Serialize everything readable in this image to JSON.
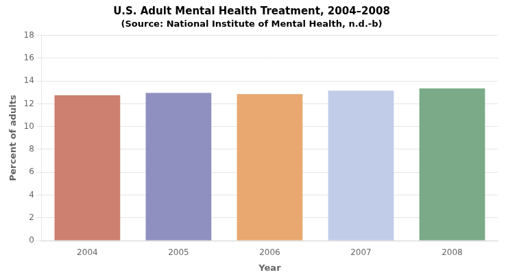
{
  "chart_data": {
    "type": "bar",
    "title": "U.S. Adult Mental Health Treatment, 2004–2008",
    "subtitle": "(Source: National Institute of Mental Health, n.d.-b)",
    "xlabel": "Year",
    "ylabel": "Percent of adults",
    "categories": [
      "2004",
      "2005",
      "2006",
      "2007",
      "2008"
    ],
    "values": [
      12.75,
      12.95,
      12.85,
      13.15,
      13.35
    ],
    "colors": [
      "#cd8070",
      "#9090c0",
      "#e8a870",
      "#c0cce8",
      "#7aaa88"
    ],
    "ylim": [
      0,
      18
    ],
    "yticks": [
      0,
      2,
      4,
      6,
      8,
      10,
      12,
      14,
      16,
      18
    ],
    "grid": true
  }
}
